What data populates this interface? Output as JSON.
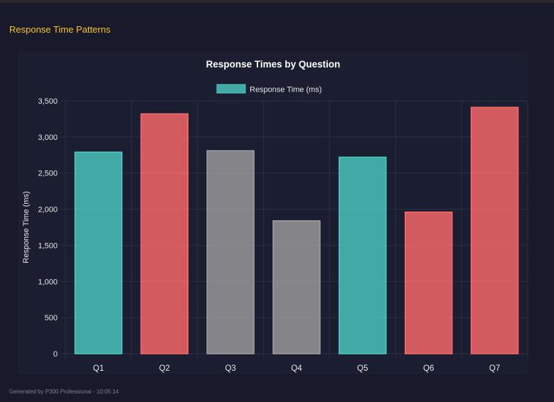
{
  "section_title": "Response Time Patterns",
  "footer": "Generated by P300 Professional - 10:05:14",
  "chart_data": {
    "type": "bar",
    "title": "Response Times by Question",
    "legend": {
      "label": "Response Time (ms)",
      "position": "top",
      "color": "#4ecdc4"
    },
    "categories": [
      "Q1",
      "Q2",
      "Q3",
      "Q4",
      "Q5",
      "Q6",
      "Q7"
    ],
    "values": [
      2790,
      3320,
      2810,
      1840,
      2720,
      1960,
      3410
    ],
    "colors": [
      "#4ecdc4",
      "#ff6b6b",
      "#a0a0a0",
      "#a0a0a0",
      "#4ecdc4",
      "#ff6b6b",
      "#ff6b6b"
    ],
    "xlabel": "",
    "ylabel": "Response Time (ms)",
    "ylim": [
      0,
      3500
    ],
    "yticks": [
      "0",
      "500",
      "1,000",
      "1,500",
      "2,000",
      "2,500",
      "3,000",
      "3,500"
    ],
    "grid": true
  }
}
